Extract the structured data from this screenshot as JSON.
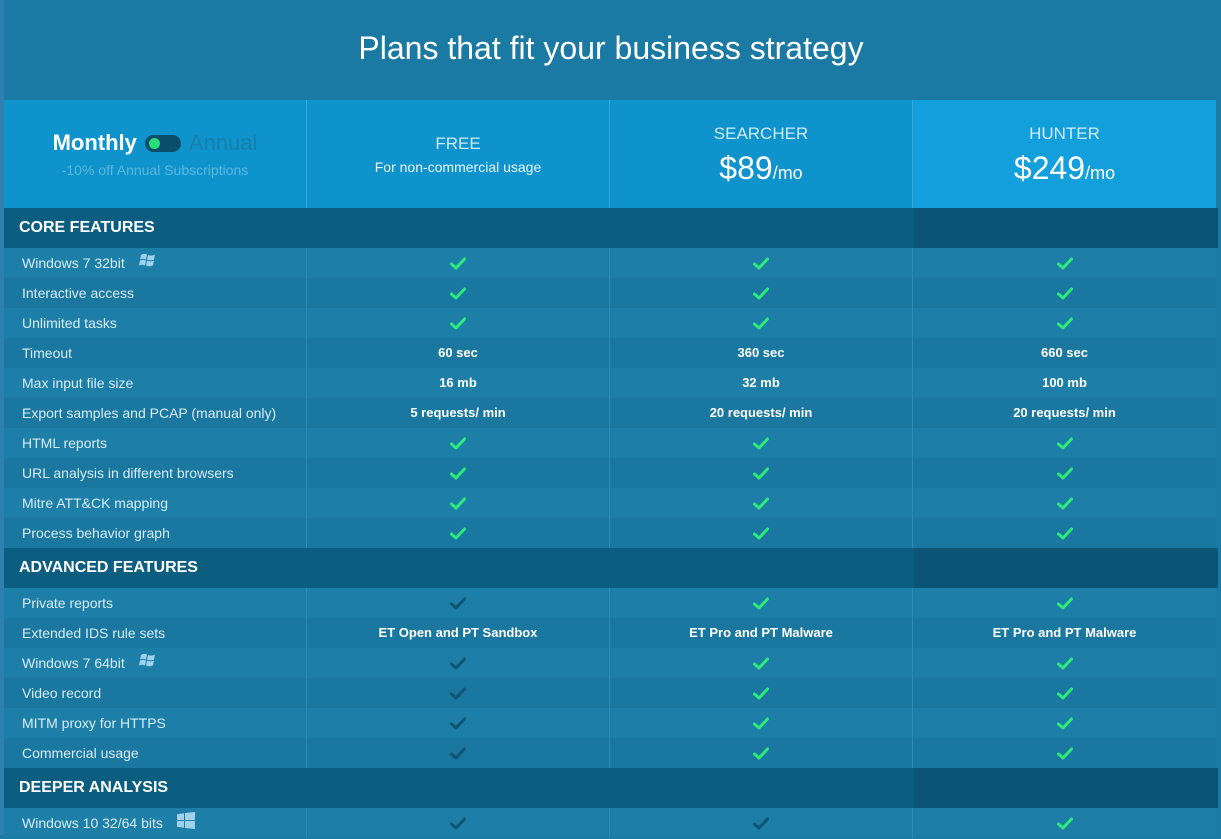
{
  "title": "Plans that fit your business strategy",
  "billing": {
    "monthly_label": "Monthly",
    "annual_label": "Annual",
    "discount_text": "-10% off Annual Subscriptions"
  },
  "plans": [
    {
      "name": "FREE",
      "subtitle": "For non-commercial usage"
    },
    {
      "name": "SEARCHER",
      "price": "$89",
      "per": "/mo"
    },
    {
      "name": "HUNTER",
      "price": "$249",
      "per": "/mo"
    }
  ],
  "sections": [
    {
      "title": "CORE FEATURES",
      "rows": [
        {
          "label": "Windows 7 32bit",
          "icon": "windows-flag-icon",
          "values": [
            "check",
            "check",
            "check"
          ]
        },
        {
          "label": "Interactive access",
          "values": [
            "check",
            "check",
            "check"
          ]
        },
        {
          "label": "Unlimited tasks",
          "values": [
            "check",
            "check",
            "check"
          ]
        },
        {
          "label": "Timeout",
          "values": [
            "60 sec",
            "360 sec",
            "660 sec"
          ]
        },
        {
          "label": "Max input file size",
          "values": [
            "16 mb",
            "32 mb",
            "100 mb"
          ]
        },
        {
          "label": "Export samples and PCAP (manual only)",
          "values": [
            "5 requests/ min",
            "20 requests/ min",
            "20 requests/ min"
          ]
        },
        {
          "label": "HTML reports",
          "values": [
            "check",
            "check",
            "check"
          ]
        },
        {
          "label": "URL analysis in different browsers",
          "values": [
            "check",
            "check",
            "check"
          ]
        },
        {
          "label": "Mitre ATT&CK mapping",
          "values": [
            "check",
            "check",
            "check"
          ]
        },
        {
          "label": "Process behavior graph",
          "values": [
            "check",
            "check",
            "check"
          ]
        }
      ]
    },
    {
      "title": "ADVANCED FEATURES",
      "rows": [
        {
          "label": "Private reports",
          "values": [
            "check-disabled",
            "check",
            "check"
          ]
        },
        {
          "label": "Extended IDS rule sets",
          "values": [
            "ET Open and PT Sandbox",
            "ET Pro and PT Malware",
            "ET Pro and PT Malware"
          ]
        },
        {
          "label": "Windows 7 64bit",
          "icon": "windows-flag-icon",
          "values": [
            "check-disabled",
            "check",
            "check"
          ]
        },
        {
          "label": "Video record",
          "values": [
            "check-disabled",
            "check",
            "check"
          ]
        },
        {
          "label": "MITM proxy for HTTPS",
          "values": [
            "check-disabled",
            "check",
            "check"
          ]
        },
        {
          "label": "Commercial usage",
          "values": [
            "check-disabled",
            "check",
            "check"
          ]
        }
      ]
    },
    {
      "title": "DEEPER ANALYSIS",
      "rows": [
        {
          "label": "Windows 10 32/64 bits",
          "icon": "windows10-icon",
          "values": [
            "check-disabled",
            "check-disabled",
            "check"
          ]
        }
      ]
    }
  ],
  "colors": {
    "check_active": "#2ee87a",
    "check_disabled": "#0d5475",
    "background": "#1b7aa3",
    "header_highlight": "#139fdb"
  }
}
